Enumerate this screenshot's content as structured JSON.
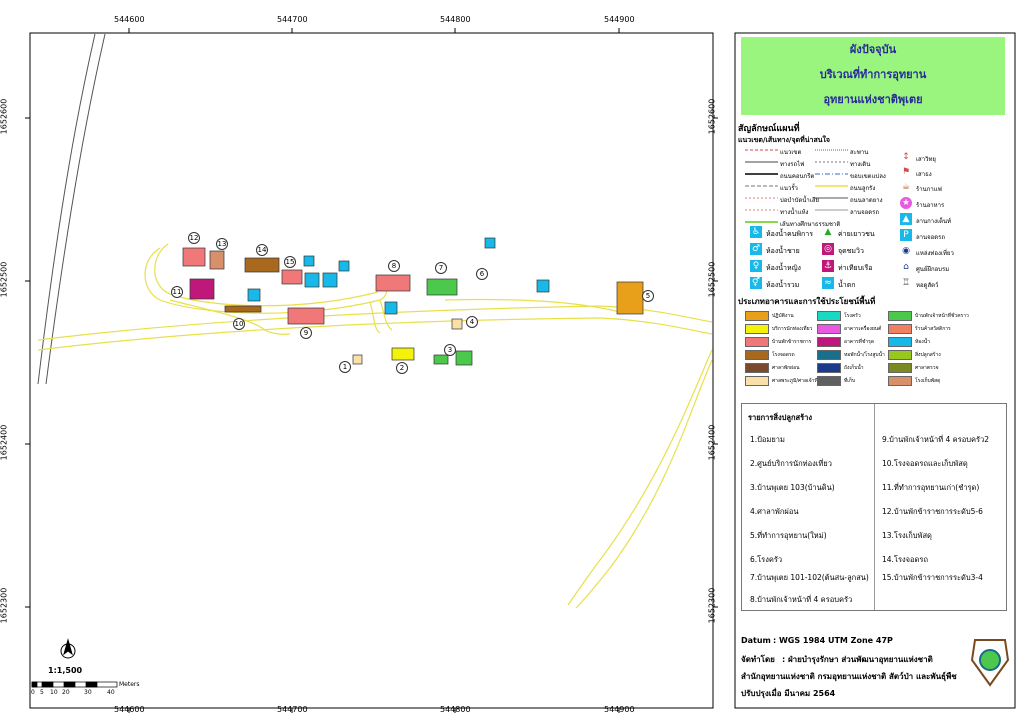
{
  "map_title": [
    "ผังปัจจุบัน",
    "บริเวณที่ทำการอุทยาน",
    "อุทยานแห่งชาติพุเตย"
  ],
  "axis": {
    "x_ticks": [
      "544600",
      "544700",
      "544800",
      "544900"
    ],
    "y_ticks": [
      "1652600",
      "1652500",
      "1652400",
      "1652300"
    ]
  },
  "legend": {
    "heading": "สัญลักษณ์แผนที่",
    "subheading": "แนวเขต/เส้นทาง/จุดที่น่าสนใจ",
    "lines_col1": [
      "แนวเขต",
      "ทางรถไฟ",
      "ถนนคอนกรีต",
      "แนวรั้ว",
      "บ่อบำบัดน้ำเสีย",
      "ทางน้ำแห้ง",
      "เส้นทางศึกษาธรรมชาติ"
    ],
    "lines_col2": [
      "สะพาน",
      "ทางเดิน",
      "ขอบเขตแปลง",
      "ถนนลูกรัง",
      "ถนนลาดยาง",
      "ลานจอดรถ"
    ],
    "points_right": [
      "เสาวิทยุ",
      "เสาธง",
      "ร้านกาแฟ",
      "ร้านอาหาร",
      "ลานกางเต็นท์",
      "ลานจอดรถ",
      "แหล่งท่องเที่ยว",
      "ศูนย์ฝึกอบรม",
      "หอดูสัตว์"
    ],
    "points_mid": [
      "ห้องน้ำคนพิการ",
      "ห้องน้ำชาย",
      "ห้องน้ำหญิง",
      "ห้องน้ำรวม",
      "ค่ายเยาวชน",
      "จุดชมวิว",
      "ท่าเทียบเรือ",
      "น้ำตก"
    ],
    "building_heading": "ประเภทอาคารและการใช้ประโยชน์พื้นที่",
    "building_types": [
      {
        "label": "ปฏิบัติงาน",
        "color": "#e8a01a"
      },
      {
        "label": "โรงครัว",
        "color": "#18d9c2"
      },
      {
        "label": "บ้านพักเจ้าหน้าที่ชั่วคราว",
        "color": "#4cc94c"
      },
      {
        "label": "บริการนักท่องเที่ยว",
        "color": "#f2f20a"
      },
      {
        "label": "อาคารเครื่องยนต์",
        "color": "#e858e0"
      },
      {
        "label": "ร้านค้าสวัสดิการ",
        "color": "#f08060"
      },
      {
        "label": "บ้านพักข้าราชการ",
        "color": "#f07878"
      },
      {
        "label": "อาคารที่ชำรุด",
        "color": "#c0187a"
      },
      {
        "label": "ห้องน้ำ",
        "color": "#18b8e8"
      },
      {
        "label": "โรงจอดรถ",
        "color": "#a8691e"
      },
      {
        "label": "หอพักน้ำ/โรงสูบน้ำ",
        "color": "#18708c"
      },
      {
        "label": "สิ่งปลูกสร้าง",
        "color": "#98c81e"
      },
      {
        "label": "ศาลาพักผ่อน",
        "color": "#7a4a2e"
      },
      {
        "label": "ถังเก็บน้ำ",
        "color": "#1a3a8c"
      },
      {
        "label": "ศาลาตรวจ",
        "color": "#7a8a1e"
      },
      {
        "label": "ศาลพระภูมิ/ศาลเจ้าที่",
        "color": "#f8e0a8"
      },
      {
        "label": "ที่เก็บ",
        "color": "#606060"
      },
      {
        "label": "โรงเก็บพัสดุ",
        "color": "#d8906a"
      }
    ]
  },
  "building_list": {
    "heading": "รายการสิ่งปลูกสร้าง",
    "left": [
      "1.ป้อมยาม",
      "2.ศูนย์บริการนักท่องเที่ยว",
      "3.บ้านพุเตย 103(บ้านดิน)",
      "4.ศาลาพักผ่อน",
      "5.ที่ทำการอุทยาน(ใหม่)",
      "6.โรงครัว",
      "7.บ้านพุเตย 101-102(ต้นสน-ลูกสน)",
      "8.บ้านพักเจ้าหน้าที่ 4 ครอบครัว"
    ],
    "right": [
      "9.บ้านพักเจ้าหน้าที่ 4 ครอบครัว2",
      "10.โรงจอดรถและเก็บพัสดุ",
      "11.ที่ทำการอุทยานเก่า(ชำรุด)",
      "12.บ้านพักข้าราชการระดับ5-6",
      "13.โรงเก็บพัสดุ",
      "14.โรงจอดรถ",
      "15.บ้านพักข้าราชการระดับ3-4"
    ]
  },
  "info": {
    "datum_label": "Datum",
    "datum_value": ": WGS 1984 UTM Zone 47P",
    "made_by_label": "จัดทำโดย",
    "made_by_value": ": ฝ่ายบำรุงรักษา ส่วนพัฒนาอุทยานแห่งชาติ",
    "office": "สำนักอุทยานแห่งชาติ  กรมอุทยานแห่งชาติ สัตว์ป่า และพันธุ์พืช",
    "updated": "ปรับปรุงเมื่อ มีนาคม 2564"
  },
  "scale": {
    "ratio": "1:1,500",
    "ticks": [
      "0",
      "5",
      "10",
      "20",
      "30",
      "40"
    ],
    "unit": "Meters"
  },
  "building_numbers": [
    "1",
    "2",
    "3",
    "4",
    "5",
    "6",
    "7",
    "8",
    "9",
    "10",
    "11",
    "12",
    "13",
    "14",
    "15"
  ]
}
